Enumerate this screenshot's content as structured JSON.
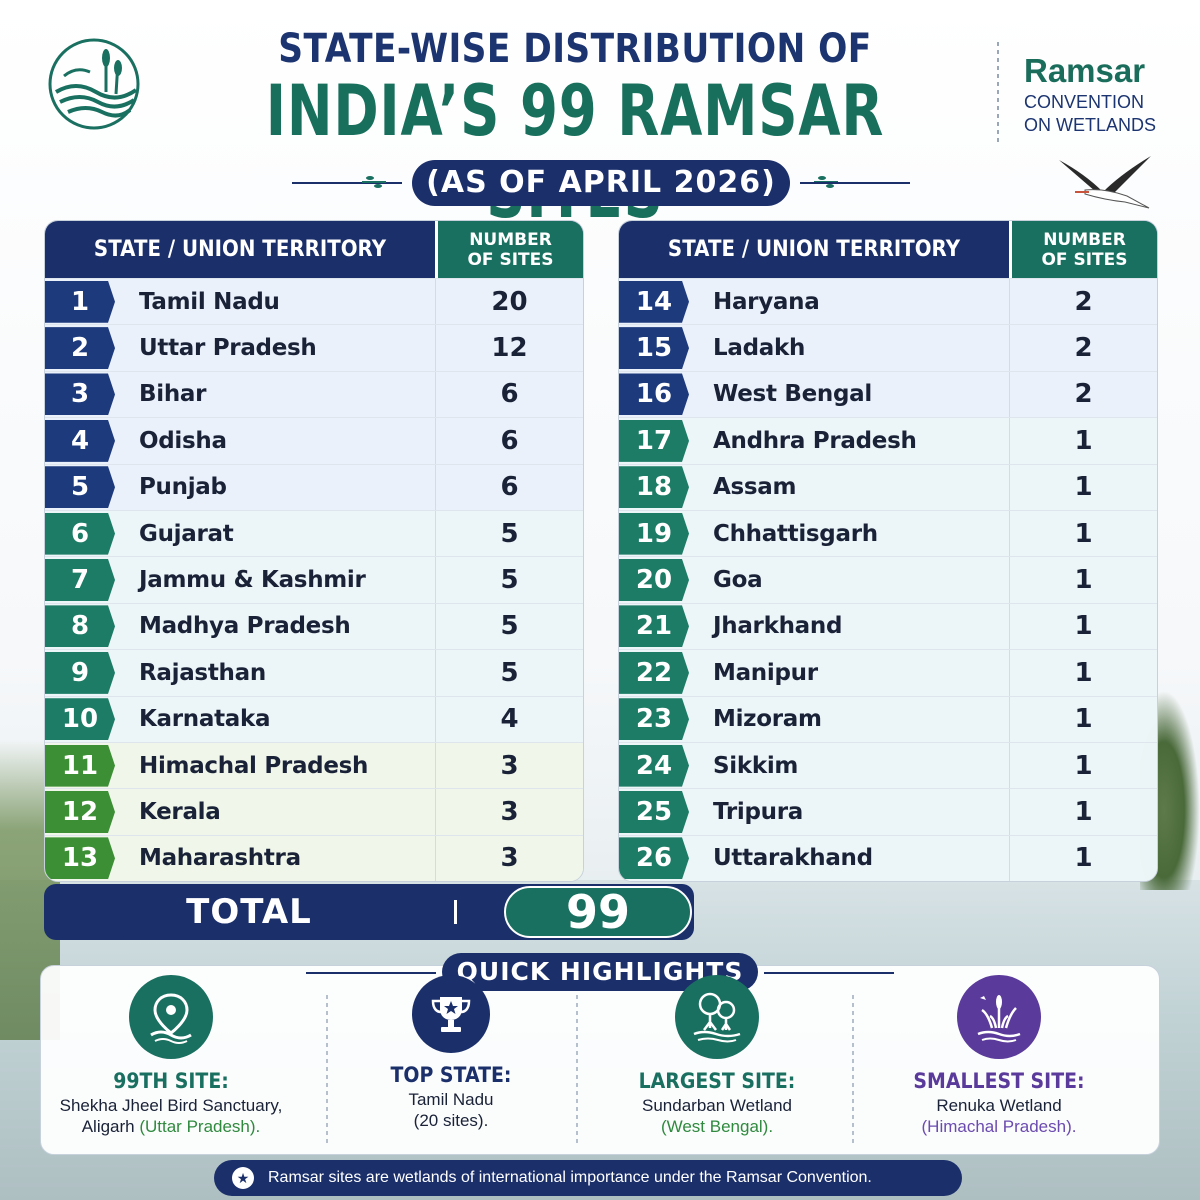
{
  "header": {
    "title_line1": "STATE-WISE DISTRIBUTION OF",
    "title_line2": "INDIA’S 99 RAMSAR SITES",
    "subtitle": "(AS OF APRIL 2026)",
    "brand_name": "Ramsar",
    "brand_sub1": "CONVENTION",
    "brand_sub2": "ON WETLANDS"
  },
  "table_headers": {
    "state": "STATE / UNION TERRITORY",
    "count_line1": "NUMBER",
    "count_line2": "OF SITES"
  },
  "left_rows": [
    {
      "rank": "1",
      "state": "Tamil Nadu",
      "sites": "20",
      "tone": "navy"
    },
    {
      "rank": "2",
      "state": "Uttar Pradesh",
      "sites": "12",
      "tone": "navy"
    },
    {
      "rank": "3",
      "state": "Bihar",
      "sites": "6",
      "tone": "navy"
    },
    {
      "rank": "4",
      "state": "Odisha",
      "sites": "6",
      "tone": "navy"
    },
    {
      "rank": "5",
      "state": "Punjab",
      "sites": "6",
      "tone": "navy"
    },
    {
      "rank": "6",
      "state": "Gujarat",
      "sites": "5",
      "tone": "teal"
    },
    {
      "rank": "7",
      "state": "Jammu & Kashmir",
      "sites": "5",
      "tone": "teal"
    },
    {
      "rank": "8",
      "state": "Madhya Pradesh",
      "sites": "5",
      "tone": "teal"
    },
    {
      "rank": "9",
      "state": "Rajasthan",
      "sites": "5",
      "tone": "teal"
    },
    {
      "rank": "10",
      "state": "Karnataka",
      "sites": "4",
      "tone": "teal"
    },
    {
      "rank": "11",
      "state": "Himachal Pradesh",
      "sites": "3",
      "tone": "green"
    },
    {
      "rank": "12",
      "state": "Kerala",
      "sites": "3",
      "tone": "green"
    },
    {
      "rank": "13",
      "state": "Maharashtra",
      "sites": "3",
      "tone": "green"
    }
  ],
  "right_rows": [
    {
      "rank": "14",
      "state": "Haryana",
      "sites": "2",
      "tone": "navy"
    },
    {
      "rank": "15",
      "state": "Ladakh",
      "sites": "2",
      "tone": "navy"
    },
    {
      "rank": "16",
      "state": "West Bengal",
      "sites": "2",
      "tone": "navy"
    },
    {
      "rank": "17",
      "state": "Andhra Pradesh",
      "sites": "1",
      "tone": "teal"
    },
    {
      "rank": "18",
      "state": "Assam",
      "sites": "1",
      "tone": "teal"
    },
    {
      "rank": "19",
      "state": "Chhattisgarh",
      "sites": "1",
      "tone": "teal"
    },
    {
      "rank": "20",
      "state": "Goa",
      "sites": "1",
      "tone": "teal"
    },
    {
      "rank": "21",
      "state": "Jharkhand",
      "sites": "1",
      "tone": "teal"
    },
    {
      "rank": "22",
      "state": "Manipur",
      "sites": "1",
      "tone": "teal"
    },
    {
      "rank": "23",
      "state": "Mizoram",
      "sites": "1",
      "tone": "teal"
    },
    {
      "rank": "24",
      "state": "Sikkim",
      "sites": "1",
      "tone": "teal"
    },
    {
      "rank": "25",
      "state": "Tripura",
      "sites": "1",
      "tone": "teal"
    },
    {
      "rank": "26",
      "state": "Uttarakhand",
      "sites": "1",
      "tone": "teal"
    }
  ],
  "total": {
    "label": "TOTAL",
    "value": "99"
  },
  "highlights": {
    "title": "QUICK HIGHLIGHTS",
    "items": [
      {
        "head": "99TH SITE:",
        "line1": "Shekha Jheel Bird Sanctuary,",
        "line2_plain": "Aligarh ",
        "line2_colored": "(Uttar Pradesh).",
        "color": "#1a7060",
        "icon": "location-pin-icon"
      },
      {
        "head": "TOP STATE:",
        "line1": "Tamil Nadu",
        "line2_plain": "(20 sites).",
        "line2_colored": "",
        "color": "#1b2f6b",
        "icon": "trophy-icon"
      },
      {
        "head": "LARGEST SITE:",
        "line1": "Sundarban Wetland",
        "line2_plain": "",
        "line2_colored": "(West Bengal).",
        "color": "#1a7060",
        "icon": "mangrove-icon"
      },
      {
        "head": "SMALLEST SITE:",
        "line1": "Renuka Wetland",
        "line2_plain": "",
        "line2_colored": "(Himachal Pradesh).",
        "color": "#5a3a9a",
        "icon": "reeds-icon"
      }
    ]
  },
  "footnote": "Ramsar sites are wetlands of international importance under the Ramsar Convention.",
  "colors": {
    "navy": "#1b2f6b",
    "teal": "#1a7060",
    "green": "#3d8f35",
    "purple": "#5a3a9a"
  }
}
